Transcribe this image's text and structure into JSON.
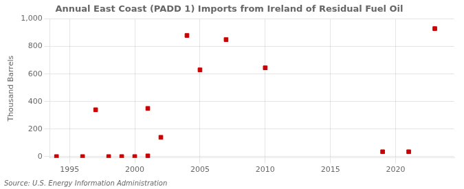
{
  "chart_data": {
    "type": "scatter",
    "title": "Annual East Coast (PADD 1) Imports from Ireland of Residual Fuel Oil",
    "ylabel": "Thousand Barrels",
    "annotation": "Source: U.S. Energy Information Administration",
    "x": [
      1994,
      1996,
      1997,
      1998,
      1999,
      2000,
      2001,
      2001,
      2002,
      2004,
      2005,
      2007,
      2010,
      2019,
      2021,
      2023
    ],
    "values": [
      0,
      0,
      340,
      0,
      0,
      0,
      5,
      350,
      140,
      880,
      630,
      850,
      645,
      35,
      35,
      930
    ],
    "color": "#cc0000",
    "marker": "square",
    "xlim": [
      1993.5,
      2024.5
    ],
    "ylim": [
      -10,
      1000
    ],
    "xticks": [
      1995,
      2000,
      2005,
      2010,
      2015,
      2020
    ],
    "yticks": [
      0,
      200,
      400,
      600,
      800,
      {
        "value": 1000,
        "label": "1,000"
      }
    ],
    "grid": true
  }
}
